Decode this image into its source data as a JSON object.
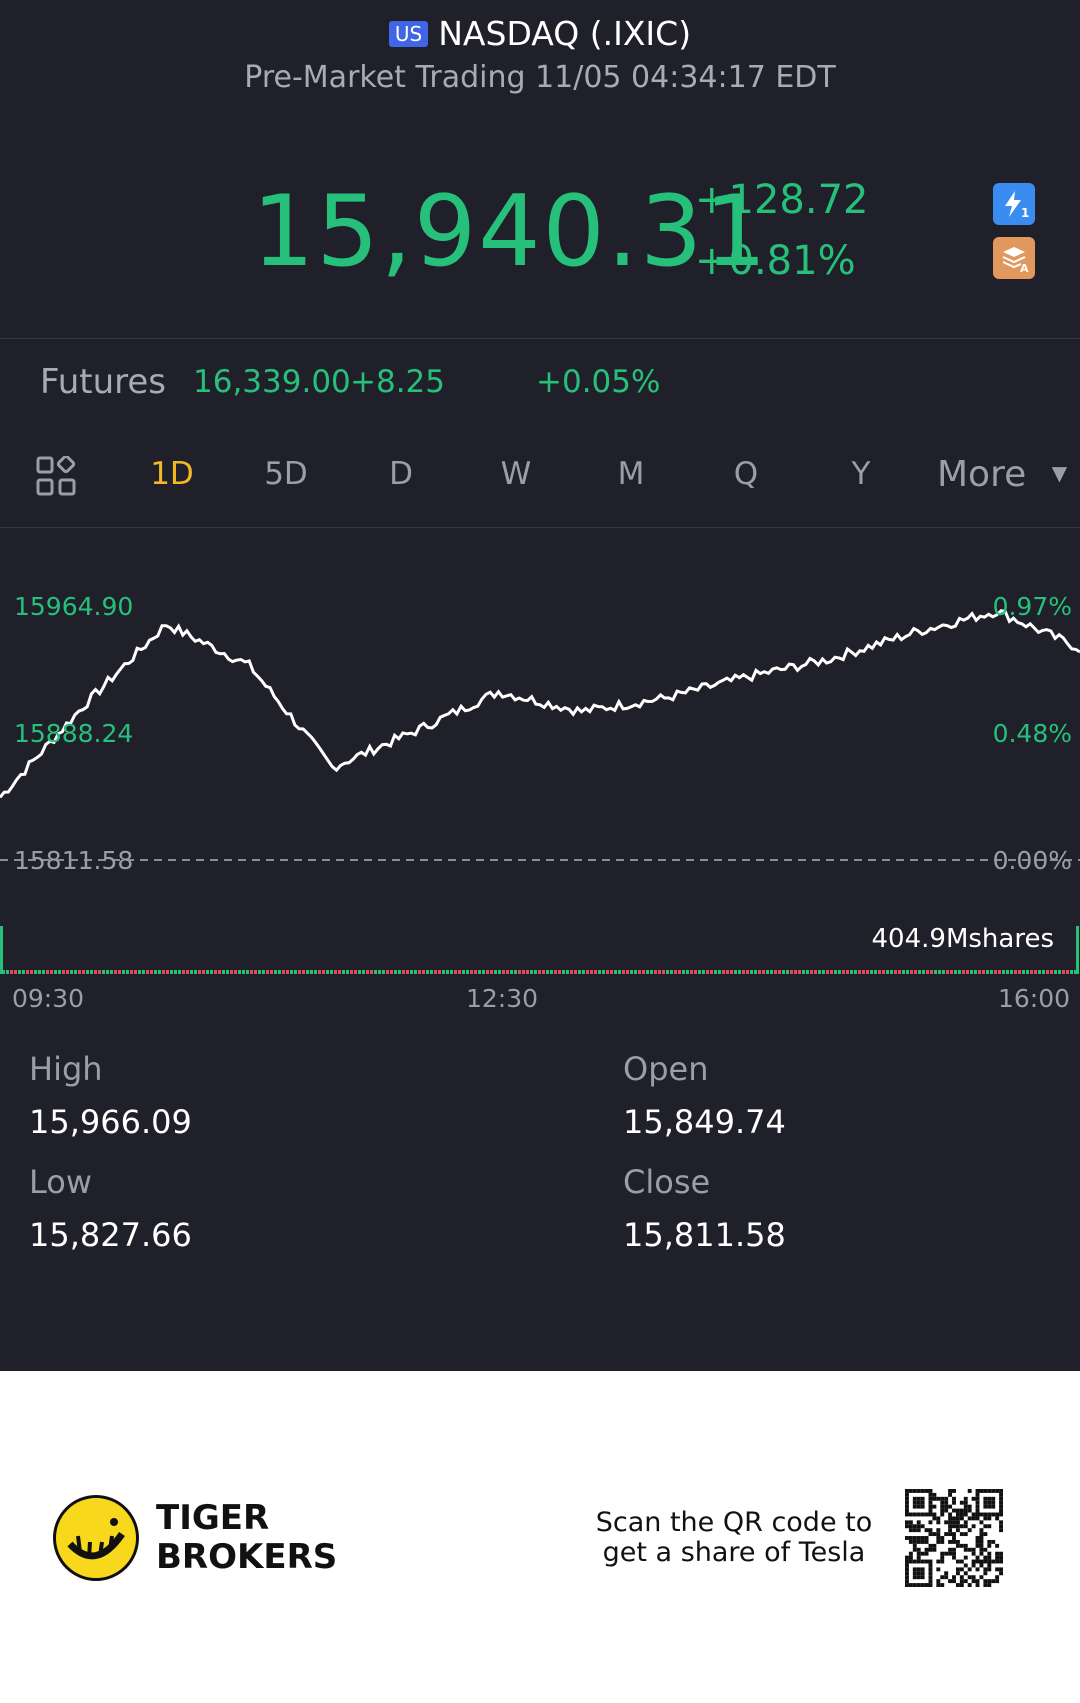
{
  "header": {
    "market_badge": "US",
    "title": "NASDAQ (.IXIC)",
    "subtitle": "Pre-Market Trading 11/05 04:34:17 EDT"
  },
  "quote": {
    "price": "15,940.31",
    "change": "+128.72",
    "change_pct": "+0.81%",
    "color_up": "#27c07b"
  },
  "futures": {
    "label": "Futures",
    "value": "16,339.00",
    "change": "+8.25",
    "change_pct": "+0.05%"
  },
  "tabs": {
    "icon": "grid-icon",
    "items": [
      "1D",
      "5D",
      "D",
      "W",
      "M",
      "Q",
      "Y"
    ],
    "active": "1D",
    "more": "More"
  },
  "chart": {
    "y_labels_left": [
      "15964.90",
      "15888.24",
      "15811.58"
    ],
    "y_labels_right": [
      "0.97%",
      "0.48%",
      "0.00%"
    ],
    "volume_label": "404.9Mshares",
    "x_labels": [
      "09:30",
      "12:30",
      "16:00"
    ]
  },
  "chart_data": {
    "type": "line",
    "x": [
      "09:30",
      "10:00",
      "10:30",
      "11:00",
      "11:30",
      "12:00",
      "12:30",
      "13:00",
      "13:30",
      "14:00",
      "14:30",
      "15:00",
      "15:30",
      "16:00"
    ],
    "y": [
      15849.7,
      15905.0,
      15955.0,
      15930.0,
      15868.0,
      15890.0,
      15914.0,
      15902.0,
      15910.0,
      15923.0,
      15934.0,
      15950.0,
      15963.0,
      15940.3
    ],
    "ylim": [
      15811.58,
      15964.9
    ],
    "baseline": 15811.58
  },
  "stats": {
    "high_label": "High",
    "high": "15,966.09",
    "open_label": "Open",
    "open": "15,849.74",
    "low_label": "Low",
    "low": "15,827.66",
    "close_label": "Close",
    "close": "15,811.58"
  },
  "footer": {
    "brand_line1": "TIGER",
    "brand_line2": "BROKERS",
    "scan_line1": "Scan the QR code to",
    "scan_line2": "get a share of Tesla"
  }
}
